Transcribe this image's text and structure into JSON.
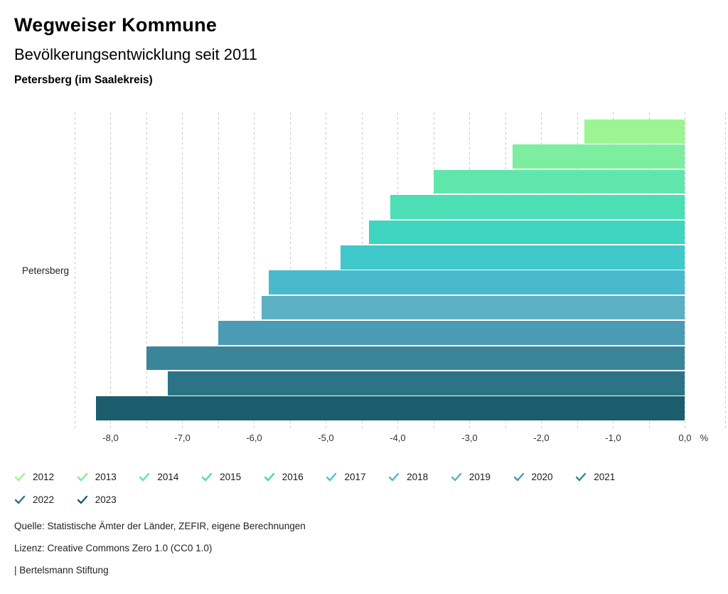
{
  "header": {
    "title": "Wegweiser Kommune",
    "subtitle": "Bevölkerungsentwicklung seit 2011",
    "region": "Petersberg (im Saalekreis)"
  },
  "chart_data": {
    "type": "bar",
    "orientation": "horizontal",
    "group_label": "Petersberg",
    "categories": [
      "2012",
      "2013",
      "2014",
      "2015",
      "2016",
      "2017",
      "2018",
      "2019",
      "2020",
      "2021",
      "2022",
      "2023"
    ],
    "values": [
      -1.4,
      -2.4,
      -3.5,
      -4.1,
      -4.4,
      -4.8,
      -5.8,
      -5.9,
      -6.5,
      -7.5,
      -7.2,
      -8.2
    ],
    "colors": [
      "#9cf492",
      "#7dee9f",
      "#60e6ab",
      "#4cdeb5",
      "#3fd5c0",
      "#3fc9cb",
      "#49bacc",
      "#5cb0c3",
      "#4a9bb3",
      "#3a8698",
      "#2b7385",
      "#1b5c6d"
    ],
    "xlim": [
      -8.5,
      0.57
    ],
    "gridline_step": 0.5,
    "tick_values": [
      -8,
      -7,
      -6,
      -5,
      -4,
      -3,
      -2,
      -1,
      0
    ],
    "tick_labels": [
      "-8,0",
      "-7,0",
      "-6,0",
      "-5,0",
      "-4,0",
      "-3,0",
      "-2,0",
      "-1,0",
      "0,0"
    ],
    "unit_label": "%",
    "grid": "dashed-vertical",
    "legend_position": "bottom"
  },
  "footer": {
    "source": "Quelle: Statistische Ämter der Länder, ZEFIR, eigene Berechnungen",
    "license": "Lizenz: Creative Commons Zero 1.0 (CC0 1.0)",
    "attribution": "| Bertelsmann Stiftung"
  }
}
